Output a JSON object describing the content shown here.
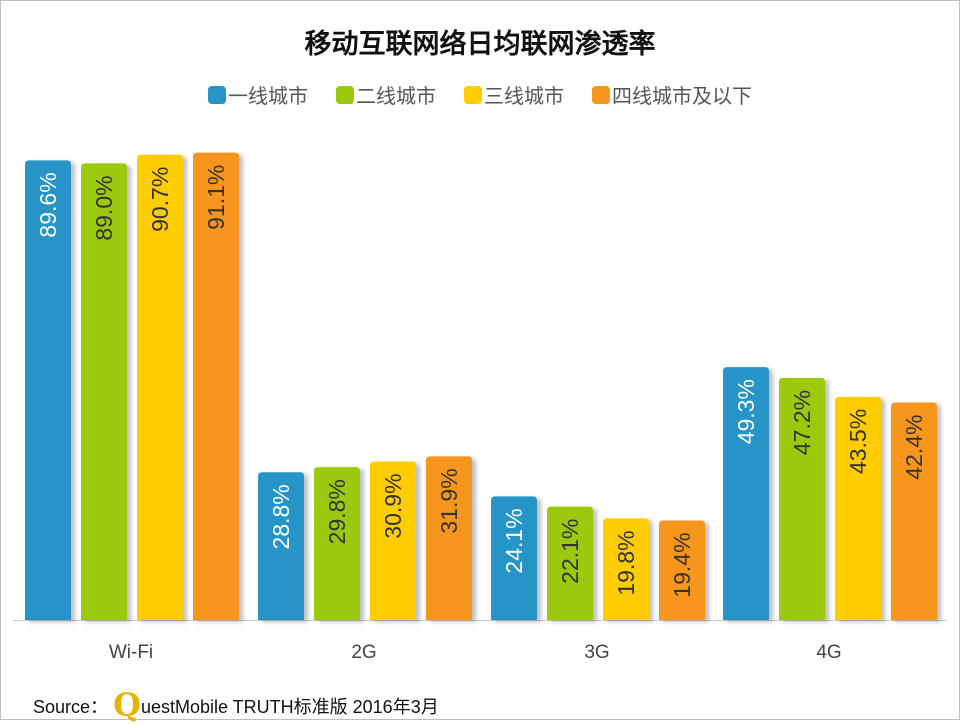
{
  "chart_data": {
    "type": "bar",
    "title": "移动互联网络日均联网渗透率",
    "categories": [
      "Wi-Fi",
      "2G",
      "3G",
      "4G"
    ],
    "series": [
      {
        "name": "一线城市",
        "color": "#2694c6",
        "label_color": "#ffffff",
        "values": [
          89.6,
          28.8,
          24.1,
          49.3
        ]
      },
      {
        "name": "二线城市",
        "color": "#9ac90f",
        "label_color": "#333333",
        "values": [
          89.0,
          29.8,
          22.1,
          47.2
        ]
      },
      {
        "name": "三线城市",
        "color": "#ffcc00",
        "label_color": "#333333",
        "values": [
          90.7,
          30.9,
          19.8,
          43.5
        ]
      },
      {
        "name": "四线城市及以下",
        "color": "#f7961e",
        "label_color": "#333333",
        "values": [
          91.1,
          31.9,
          19.4,
          42.4
        ]
      }
    ],
    "value_format": "%",
    "legend": "top",
    "grid": false,
    "ylim": [
      0,
      100
    ]
  },
  "source": {
    "prefix": "Source：",
    "logo_letter": "Q",
    "text": "uestMobile TRUTH标准版 2016年3月"
  }
}
